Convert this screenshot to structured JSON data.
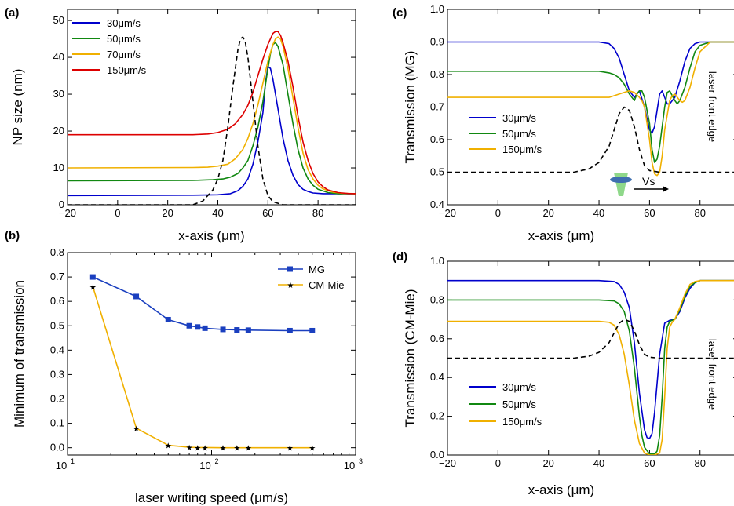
{
  "chart_data": [
    {
      "panel": "(a)",
      "type": "line",
      "xlabel": "x-axis (μm)",
      "ylabel": "NP size (nm)",
      "xlim": [
        -20,
        95
      ],
      "ylim": [
        0,
        53
      ],
      "xticks": [
        -20,
        0,
        20,
        40,
        60,
        80
      ],
      "yticks": [
        0,
        10,
        20,
        30,
        40,
        50
      ],
      "legend": "top-left",
      "series": [
        {
          "name": "30μm/s",
          "color": "#0000cc",
          "dash": false,
          "x": [
            -20,
            30,
            40,
            45,
            48,
            50,
            52,
            54,
            56,
            58,
            59,
            60,
            61,
            62,
            64,
            66,
            68,
            70,
            72,
            74,
            76,
            78,
            82,
            86,
            95
          ],
          "y": [
            2.5,
            2.6,
            2.7,
            3,
            3.8,
            5,
            7,
            11,
            17,
            25,
            33,
            37.5,
            37,
            34,
            26,
            18,
            12,
            8,
            5.5,
            4.2,
            3.6,
            3.2,
            3,
            3,
            3
          ]
        },
        {
          "name": "50μm/s",
          "color": "#118811",
          "dash": false,
          "x": [
            -20,
            30,
            38,
            42,
            45,
            48,
            50,
            52,
            54,
            56,
            58,
            60,
            61,
            62,
            63,
            64,
            66,
            68,
            70,
            72,
            74,
            76,
            78,
            80,
            84,
            88,
            95
          ],
          "y": [
            6.5,
            6.6,
            6.8,
            7,
            7.5,
            8.5,
            10,
            12,
            16,
            21,
            28,
            37,
            41,
            43.5,
            44,
            43,
            38,
            30,
            22,
            15,
            10,
            7,
            5.3,
            4.2,
            3.3,
            3,
            3
          ]
        },
        {
          "name": "70μm/s",
          "color": "#f0b000",
          "dash": false,
          "x": [
            -20,
            30,
            36,
            40,
            44,
            47,
            50,
            52,
            54,
            56,
            58,
            60,
            62,
            63,
            64,
            65,
            66,
            68,
            70,
            72,
            74,
            76,
            78,
            80,
            82,
            86,
            90,
            95
          ],
          "y": [
            10,
            10.1,
            10.2,
            10.5,
            11,
            12.5,
            15,
            18,
            22,
            27,
            33,
            39,
            43.5,
            45,
            45.5,
            45,
            43,
            37,
            29,
            21,
            14,
            9.5,
            7,
            5.3,
            4.3,
            3.4,
            3.1,
            3
          ]
        },
        {
          "name": "150μm/s",
          "color": "#dd0000",
          "dash": false,
          "x": [
            -20,
            20,
            30,
            36,
            40,
            44,
            47,
            50,
            52,
            54,
            56,
            58,
            60,
            62,
            63,
            64,
            65,
            66,
            68,
            70,
            72,
            74,
            76,
            78,
            80,
            82,
            84,
            88,
            92,
            95
          ],
          "y": [
            19,
            19,
            19,
            19.2,
            19.6,
            20.5,
            22,
            24.5,
            27,
            30.5,
            35,
            39.5,
            43.5,
            46.5,
            47,
            47,
            46,
            44,
            39,
            32,
            24,
            17,
            12,
            8.5,
            6.2,
            4.9,
            4,
            3.3,
            3.05,
            3
          ]
        },
        {
          "name": "",
          "color": "#000000",
          "dash": true,
          "x": [
            -20,
            30,
            34,
            38,
            40,
            42,
            44,
            46,
            48,
            49,
            50,
            51,
            52,
            54,
            56,
            58,
            60,
            62,
            66,
            95
          ],
          "y": [
            0,
            0,
            1,
            4,
            7,
            12,
            21,
            32,
            42,
            45,
            45.5,
            44,
            40,
            28,
            16,
            7,
            2.5,
            0.8,
            0,
            0
          ]
        }
      ]
    },
    {
      "panel": "(b)",
      "type": "line",
      "xlabel": "laser writing speed (μm/s)",
      "ylabel": "Minimum of transmission",
      "xscale": "log",
      "xlim": [
        10,
        1000
      ],
      "ylim": [
        -0.03,
        0.8
      ],
      "xticks": [
        "10",
        "10",
        "10"
      ],
      "xtick_exponents": [
        "1",
        "2",
        "3"
      ],
      "yticks": [
        "0.0",
        "0.1",
        "0.2",
        "0.3",
        "0.4",
        "0.5",
        "0.6",
        "0.7",
        "0.8"
      ],
      "legend": "top-right",
      "series": [
        {
          "name": "MG",
          "color": "#1a3fbf",
          "marker": "square",
          "x": [
            15,
            30,
            50,
            70,
            80,
            90,
            120,
            150,
            180,
            350,
            500
          ],
          "y": [
            0.7,
            0.62,
            0.525,
            0.5,
            0.495,
            0.49,
            0.485,
            0.483,
            0.482,
            0.48,
            0.48
          ]
        },
        {
          "name": "CM-Mie",
          "color": "#f0b000",
          "marker": "star",
          "x": [
            15,
            30,
            50,
            70,
            80,
            90,
            120,
            150,
            180,
            350,
            500
          ],
          "y": [
            0.66,
            0.08,
            0.01,
            0.002,
            0.001,
            0.001,
            0,
            0,
            0,
            0,
            0
          ]
        }
      ]
    },
    {
      "panel": "(c)",
      "type": "line",
      "xlabel": "x-axis (μm)",
      "ylabel": "Transmission (MG)",
      "xlim": [
        -20,
        95
      ],
      "ylim": [
        0.4,
        1.0
      ],
      "xticks": [
        -20,
        0,
        20,
        40,
        60,
        80
      ],
      "yticks": [
        "0.4",
        "0.5",
        "0.6",
        "0.7",
        "0.8",
        "0.9",
        "1.0"
      ],
      "legend": "left",
      "annotation": "laser front edge",
      "arrow_label": "Vs",
      "series": [
        {
          "name": "30μm/s",
          "color": "#0000cc",
          "x": [
            -20,
            30,
            40,
            44,
            46,
            48,
            50,
            52,
            54,
            55,
            56,
            58,
            60,
            61,
            62,
            64,
            65,
            66,
            67,
            68,
            70,
            72,
            74,
            76,
            78,
            80,
            84,
            95
          ],
          "y": [
            0.9,
            0.9,
            0.9,
            0.895,
            0.88,
            0.85,
            0.8,
            0.75,
            0.73,
            0.74,
            0.75,
            0.7,
            0.63,
            0.62,
            0.64,
            0.74,
            0.75,
            0.73,
            0.71,
            0.71,
            0.73,
            0.78,
            0.84,
            0.88,
            0.895,
            0.9,
            0.9,
            0.9
          ]
        },
        {
          "name": "50μm/s",
          "color": "#118811",
          "x": [
            -20,
            30,
            40,
            44,
            46,
            48,
            50,
            52,
            54,
            55,
            56,
            57,
            58,
            60,
            61,
            62,
            63,
            64,
            66,
            67,
            68,
            70,
            71,
            72,
            74,
            76,
            78,
            80,
            84,
            95
          ],
          "y": [
            0.81,
            0.81,
            0.81,
            0.805,
            0.8,
            0.79,
            0.77,
            0.74,
            0.72,
            0.74,
            0.75,
            0.75,
            0.73,
            0.65,
            0.57,
            0.53,
            0.54,
            0.58,
            0.7,
            0.745,
            0.75,
            0.72,
            0.71,
            0.72,
            0.76,
            0.82,
            0.87,
            0.89,
            0.9,
            0.9
          ]
        },
        {
          "name": "150μm/s",
          "color": "#f0b000",
          "x": [
            -20,
            30,
            40,
            44,
            46,
            48,
            50,
            52,
            54,
            56,
            57,
            58,
            60,
            61,
            62,
            63,
            64,
            65,
            66,
            68,
            69,
            70,
            72,
            73,
            74,
            76,
            78,
            80,
            84,
            95
          ],
          "y": [
            0.73,
            0.73,
            0.73,
            0.73,
            0.735,
            0.74,
            0.745,
            0.75,
            0.745,
            0.73,
            0.72,
            0.7,
            0.6,
            0.53,
            0.495,
            0.49,
            0.5,
            0.55,
            0.63,
            0.72,
            0.735,
            0.74,
            0.72,
            0.715,
            0.72,
            0.76,
            0.82,
            0.87,
            0.9,
            0.9
          ]
        },
        {
          "name": "",
          "color": "#000000",
          "dash": true,
          "x": [
            -20,
            30,
            36,
            40,
            44,
            46,
            48,
            50,
            52,
            54,
            56,
            58,
            60,
            64,
            95
          ],
          "y": [
            0.5,
            0.5,
            0.51,
            0.53,
            0.58,
            0.63,
            0.68,
            0.7,
            0.69,
            0.64,
            0.57,
            0.52,
            0.505,
            0.5,
            0.5
          ]
        }
      ]
    },
    {
      "panel": "(d)",
      "type": "line",
      "xlabel": "x-axis (μm)",
      "ylabel": "Transmission (CM-Mie)",
      "xlim": [
        -20,
        95
      ],
      "ylim": [
        0.0,
        1.0
      ],
      "xticks": [
        -20,
        0,
        20,
        40,
        60,
        80
      ],
      "yticks": [
        "0.0",
        "0.2",
        "0.4",
        "0.6",
        "0.8",
        "1.0"
      ],
      "legend": "bottom-left",
      "annotation": "laser front edge",
      "series": [
        {
          "name": "30μm/s",
          "color": "#0000cc",
          "x": [
            -20,
            30,
            40,
            46,
            48,
            50,
            52,
            54,
            56,
            58,
            59,
            60,
            61,
            62,
            64,
            66,
            68,
            70,
            72,
            74,
            76,
            78,
            80,
            84,
            95
          ],
          "y": [
            0.9,
            0.9,
            0.9,
            0.895,
            0.88,
            0.84,
            0.76,
            0.58,
            0.32,
            0.13,
            0.09,
            0.085,
            0.11,
            0.22,
            0.52,
            0.68,
            0.695,
            0.7,
            0.74,
            0.81,
            0.86,
            0.89,
            0.9,
            0.9,
            0.9
          ]
        },
        {
          "name": "50μm/s",
          "color": "#118811",
          "x": [
            -20,
            30,
            40,
            46,
            48,
            50,
            52,
            54,
            56,
            57,
            58,
            60,
            62,
            63,
            64,
            65,
            66,
            67,
            68,
            69,
            70,
            72,
            74,
            76,
            78,
            80,
            84,
            95
          ],
          "y": [
            0.8,
            0.8,
            0.8,
            0.795,
            0.78,
            0.74,
            0.64,
            0.45,
            0.2,
            0.1,
            0.04,
            0.005,
            0.005,
            0.02,
            0.1,
            0.3,
            0.55,
            0.66,
            0.69,
            0.695,
            0.7,
            0.75,
            0.82,
            0.87,
            0.89,
            0.9,
            0.9,
            0.9
          ]
        },
        {
          "name": "150μm/s",
          "color": "#f0b000",
          "x": [
            -20,
            30,
            40,
            44,
            46,
            48,
            50,
            52,
            54,
            56,
            58,
            60,
            62,
            64,
            65,
            66,
            67,
            68,
            69,
            70,
            72,
            74,
            76,
            78,
            80,
            84,
            95
          ],
          "y": [
            0.69,
            0.69,
            0.69,
            0.685,
            0.67,
            0.62,
            0.52,
            0.36,
            0.18,
            0.06,
            0.01,
            0,
            0,
            0.01,
            0.08,
            0.3,
            0.55,
            0.66,
            0.685,
            0.7,
            0.76,
            0.83,
            0.88,
            0.895,
            0.9,
            0.9,
            0.9
          ]
        },
        {
          "name": "",
          "color": "#000000",
          "dash": true,
          "x": [
            -20,
            30,
            36,
            40,
            44,
            46,
            48,
            50,
            52,
            54,
            56,
            58,
            60,
            64,
            95
          ],
          "y": [
            0.5,
            0.5,
            0.51,
            0.53,
            0.58,
            0.63,
            0.68,
            0.7,
            0.69,
            0.64,
            0.57,
            0.52,
            0.505,
            0.5,
            0.5
          ]
        }
      ]
    }
  ]
}
